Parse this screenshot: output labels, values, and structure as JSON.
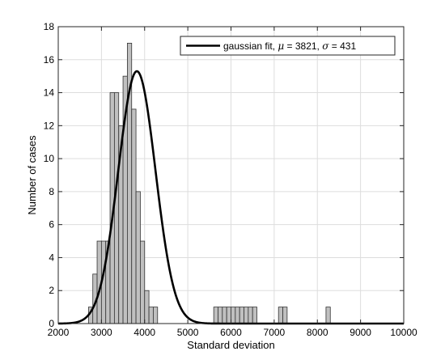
{
  "chart_data": {
    "type": "bar",
    "subtype": "histogram",
    "xlabel": "Standard deviation",
    "ylabel": "Number of cases",
    "xlim": [
      2000,
      10000
    ],
    "ylim": [
      0,
      18
    ],
    "x_ticks": [
      2000,
      3000,
      4000,
      5000,
      6000,
      7000,
      8000,
      9000,
      10000
    ],
    "y_ticks": [
      0,
      2,
      4,
      6,
      8,
      10,
      12,
      14,
      16,
      18
    ],
    "grid": true,
    "legend_position": "top-right",
    "bin_width": 100,
    "bins": [
      {
        "start": 2700,
        "count": 1
      },
      {
        "start": 2800,
        "count": 3
      },
      {
        "start": 2900,
        "count": 5
      },
      {
        "start": 3000,
        "count": 5
      },
      {
        "start": 3100,
        "count": 5
      },
      {
        "start": 3200,
        "count": 14
      },
      {
        "start": 3300,
        "count": 14
      },
      {
        "start": 3400,
        "count": 12
      },
      {
        "start": 3500,
        "count": 15
      },
      {
        "start": 3600,
        "count": 17
      },
      {
        "start": 3700,
        "count": 13
      },
      {
        "start": 3800,
        "count": 8
      },
      {
        "start": 3900,
        "count": 5
      },
      {
        "start": 4000,
        "count": 2
      },
      {
        "start": 4100,
        "count": 1
      },
      {
        "start": 4200,
        "count": 1
      },
      {
        "start": 5600,
        "count": 1
      },
      {
        "start": 5700,
        "count": 1
      },
      {
        "start": 5800,
        "count": 1
      },
      {
        "start": 5900,
        "count": 1
      },
      {
        "start": 6000,
        "count": 1
      },
      {
        "start": 6100,
        "count": 1
      },
      {
        "start": 6200,
        "count": 1
      },
      {
        "start": 6300,
        "count": 1
      },
      {
        "start": 6400,
        "count": 1
      },
      {
        "start": 6500,
        "count": 1
      },
      {
        "start": 7100,
        "count": 1
      },
      {
        "start": 7200,
        "count": 1
      },
      {
        "start": 8200,
        "count": 1
      }
    ],
    "fit": {
      "label": "gaussian fit, ",
      "mu_symbol": "μ",
      "mu_text": " = 3821, ",
      "sigma_symbol": "σ",
      "sigma_text": " = 431",
      "mu": 3821,
      "sigma": 431,
      "peak": 15.3
    },
    "colors": {
      "bar_fill": "#c0c0c0",
      "bar_stroke": "#333333",
      "fit_line": "#000000",
      "grid": "#dddddd"
    }
  }
}
